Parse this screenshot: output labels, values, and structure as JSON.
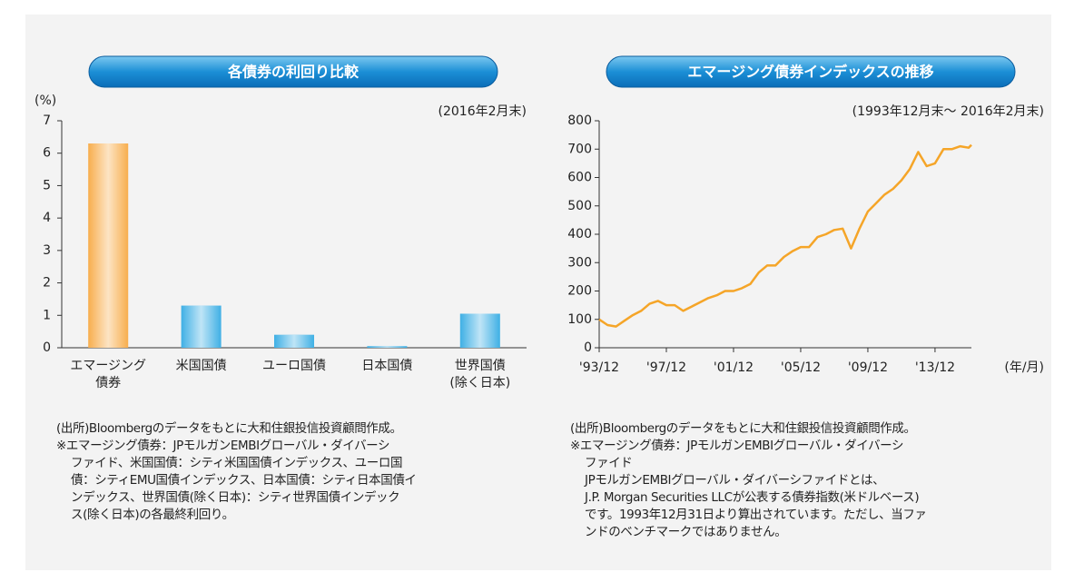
{
  "chart_data": [
    {
      "type": "bar",
      "title": "各債券の利回り比較",
      "y_unit": "(%)",
      "note_date": "(2016年2月末)",
      "categories": [
        [
          "エマージング",
          "債券"
        ],
        [
          "米国国債"
        ],
        [
          "ユーロ国債"
        ],
        [
          "日本国債"
        ],
        [
          "世界国債",
          "(除く日本)"
        ]
      ],
      "values": [
        6.3,
        1.3,
        0.4,
        0.05,
        1.05
      ],
      "colors": [
        "#f7a53a",
        "#2aa7e2",
        "#2aa7e2",
        "#2aa7e2",
        "#2aa7e2"
      ],
      "ylim": [
        0,
        7
      ],
      "yticks": [
        0,
        1,
        2,
        3,
        4,
        5,
        6,
        7
      ],
      "notes": [
        "(出所)Bloombergのデータをもとに大和住銀投信投資顧問作成。",
        "※エマージング債券：JPモルガンEMBIグローバル・ダイバーシ",
        "ファイド、米国国債：シティ米国国債インデックス、ユーロ国",
        "債：シティEMU国債インデックス、日本国債：シティ日本国債イ",
        "ンデックス、世界国債(除く日本)：シティ世界国債インデック",
        "ス(除く日本)の各最終利回り。"
      ]
    },
    {
      "type": "line",
      "title": "エマージング債券インデックスの推移",
      "x_unit": "(年/月)",
      "note_date": "(1993年12月末～ 2016年2月末)",
      "x": [
        "1993-12",
        "1994-06",
        "1994-12",
        "1995-06",
        "1995-12",
        "1996-06",
        "1996-12",
        "1997-06",
        "1997-12",
        "1998-06",
        "1998-12",
        "1999-06",
        "1999-12",
        "2000-06",
        "2000-12",
        "2001-06",
        "2001-12",
        "2002-06",
        "2002-12",
        "2003-06",
        "2003-12",
        "2004-06",
        "2004-12",
        "2005-06",
        "2005-12",
        "2006-06",
        "2006-12",
        "2007-06",
        "2007-12",
        "2008-06",
        "2008-12",
        "2009-06",
        "2009-12",
        "2010-06",
        "2010-12",
        "2011-06",
        "2011-12",
        "2012-06",
        "2012-12",
        "2013-06",
        "2013-12",
        "2014-06",
        "2014-12",
        "2015-06",
        "2015-12",
        "2016-02"
      ],
      "series": [
        {
          "color": "#f5a528",
          "values": [
            100,
            80,
            75,
            95,
            115,
            130,
            155,
            165,
            150,
            150,
            130,
            145,
            160,
            175,
            185,
            200,
            200,
            210,
            225,
            265,
            290,
            290,
            320,
            340,
            355,
            355,
            390,
            400,
            415,
            420,
            350,
            420,
            480,
            510,
            540,
            560,
            590,
            630,
            690,
            640,
            650,
            700,
            700,
            710,
            705,
            715
          ]
        }
      ],
      "xlim": [
        "1993-12",
        "2016-02"
      ],
      "xticks": [
        {
          "value": "1993-12",
          "label": "'93/12"
        },
        {
          "value": "1997-12",
          "label": "'97/12"
        },
        {
          "value": "2001-12",
          "label": "'01/12"
        },
        {
          "value": "2005-12",
          "label": "'05/12"
        },
        {
          "value": "2009-12",
          "label": "'09/12"
        },
        {
          "value": "2013-12",
          "label": "'13/12"
        }
      ],
      "ylim": [
        0,
        800
      ],
      "yticks": [
        0,
        100,
        200,
        300,
        400,
        500,
        600,
        700,
        800
      ],
      "notes": [
        "(出所)Bloombergのデータをもとに大和住銀投信投資顧問作成。",
        "※エマージング債券：JPモルガンEMBIグローバル・ダイバーシ",
        "ファイド",
        "JPモルガンEMBIグローバル・ダイバーシファイドとは、",
        "J.P. Morgan Securities LLCが公表する債券指数(米ドルベース)",
        "です。1993年12月31日より算出されています。ただし、当ファ",
        "ンドのベンチマークではありません。"
      ]
    }
  ]
}
